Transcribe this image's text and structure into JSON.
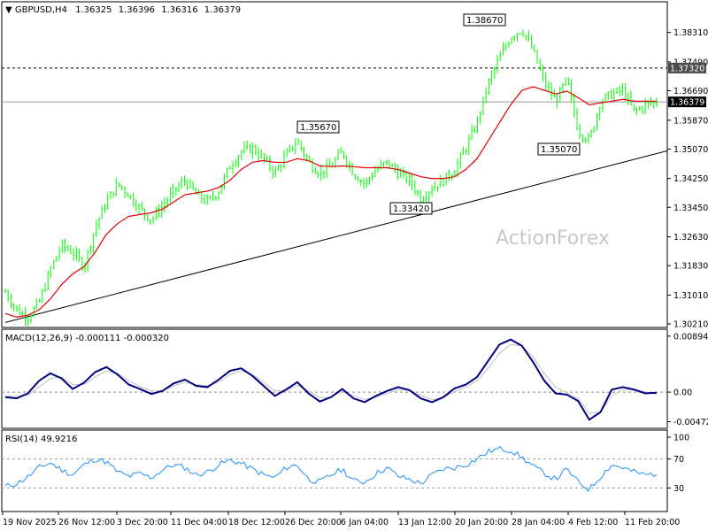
{
  "chart_data": [
    {
      "type": "candlestick",
      "title": "GBPUSD,H4",
      "ohlc": [
        "1.36325",
        "1.36396",
        "1.36316",
        "1.36379"
      ],
      "ylim": [
        1.3021,
        1.3867
      ],
      "yticks": [
        "1.38310",
        "1.37490",
        "1.36690",
        "1.35870",
        "1.35070",
        "1.34250",
        "1.33450",
        "1.32630",
        "1.31830",
        "1.31010",
        "1.30210"
      ],
      "xticks": [
        "19 Nov 2025",
        "26 Nov 12:00",
        "3 Dec 20:00",
        "11 Dec 04:00",
        "18 Dec 12:00",
        "26 Dec 20:00",
        "6 Jan 04:00",
        "13 Jan 12:00",
        "20 Jan 20:00",
        "28 Jan 04:00",
        "4 Feb 12:00",
        "11 Feb 20:00"
      ],
      "current_price": "1.36379",
      "resistance_level": "1.37320",
      "annotations": [
        {
          "text": "1.38670",
          "x": "27 Jan",
          "y": 1.3867
        },
        {
          "text": "1.35670",
          "x": "6 Jan",
          "y": 1.3567
        },
        {
          "text": "1.33420",
          "x": "16 Jan",
          "y": 1.3342
        },
        {
          "text": "1.35070",
          "x": "4 Feb",
          "y": 1.3507
        }
      ],
      "close_series": [
        1.311,
        1.306,
        1.304,
        1.308,
        1.317,
        1.324,
        1.322,
        1.318,
        1.329,
        1.336,
        1.341,
        1.338,
        1.334,
        1.331,
        1.335,
        1.339,
        1.342,
        1.338,
        1.336,
        1.339,
        1.346,
        1.35,
        1.351,
        1.348,
        1.344,
        1.349,
        1.353,
        1.347,
        1.344,
        1.346,
        1.35,
        1.344,
        1.341,
        1.345,
        1.347,
        1.344,
        1.342,
        1.337,
        1.34,
        1.342,
        1.345,
        1.351,
        1.358,
        1.369,
        1.376,
        1.382,
        1.384,
        1.378,
        1.369,
        1.364,
        1.37,
        1.356,
        1.353,
        1.364,
        1.366,
        1.367,
        1.361,
        1.363,
        1.3638
      ],
      "ma_series": [
        1.305,
        1.304,
        1.3045,
        1.306,
        1.309,
        1.313,
        1.316,
        1.318,
        1.322,
        1.327,
        1.33,
        1.332,
        1.3325,
        1.333,
        1.334,
        1.336,
        1.338,
        1.3385,
        1.339,
        1.34,
        1.342,
        1.345,
        1.347,
        1.3475,
        1.347,
        1.347,
        1.348,
        1.3475,
        1.346,
        1.3458,
        1.346,
        1.3458,
        1.3455,
        1.3455,
        1.3455,
        1.345,
        1.344,
        1.343,
        1.3425,
        1.3425,
        1.343,
        1.345,
        1.348,
        1.353,
        1.358,
        1.363,
        1.367,
        1.368,
        1.367,
        1.366,
        1.3668,
        1.365,
        1.363,
        1.3635,
        1.364,
        1.3645,
        1.364,
        1.364,
        1.364
      ],
      "trendline": [
        [
          0,
          1.3025
        ],
        [
          1,
          1.3507
        ]
      ]
    },
    {
      "type": "line",
      "title": "MACD(12,26,9) -0.000111 -0.000320",
      "yticks": [
        "0.008942",
        "0.00",
        "-0.004725"
      ],
      "ylim": [
        -0.0055,
        0.0092
      ],
      "macd": [
        -0.0008,
        -0.001,
        -0.0002,
        0.0018,
        0.003,
        0.0022,
        0.0005,
        0.0015,
        0.0032,
        0.004,
        0.0028,
        0.0012,
        0.0005,
        -0.0003,
        0.0002,
        0.0014,
        0.002,
        0.001,
        0.0008,
        0.002,
        0.0034,
        0.0038,
        0.0026,
        0.001,
        -0.0006,
        0.0004,
        0.0016,
        -0.0002,
        -0.0015,
        -0.0008,
        0.0005,
        -0.001,
        -0.0016,
        -0.0006,
        0.0002,
        0.0008,
        0.0003,
        -0.001,
        -0.0016,
        -0.0008,
        0.0006,
        0.0012,
        0.0024,
        0.005,
        0.0076,
        0.0084,
        0.0074,
        0.0048,
        0.0018,
        -0.0002,
        -0.0004,
        -0.0014,
        -0.0044,
        -0.0032,
        0.0004,
        0.0008,
        0.0004,
        -0.0002,
        -0.0001
      ],
      "signal": [
        -0.0006,
        -0.0007,
        -0.0005,
        0.0008,
        0.0022,
        0.0024,
        0.0012,
        0.0012,
        0.0024,
        0.0034,
        0.003,
        0.0018,
        0.0009,
        0.0002,
        0.0002,
        0.001,
        0.0016,
        0.0012,
        0.001,
        0.0016,
        0.0028,
        0.0034,
        0.0028,
        0.0016,
        0.0002,
        0.0003,
        0.0011,
        0.0002,
        -0.0009,
        -0.0008,
        0.0001,
        -0.0006,
        -0.0012,
        -0.0008,
        -0.0002,
        0.0004,
        0.0003,
        -0.0005,
        -0.0012,
        -0.0009,
        0.0001,
        0.0008,
        0.0018,
        0.0038,
        0.0062,
        0.0076,
        0.0074,
        0.0056,
        0.003,
        0.0008,
        -0.0001,
        -0.001,
        -0.0034,
        -0.0032,
        -0.0006,
        0.0004,
        0.0004,
        0.0,
        -0.0003
      ]
    },
    {
      "type": "line",
      "title": "RSI(14) 49.9216",
      "yticks": [
        "100",
        "70",
        "30",
        "0"
      ],
      "ylim": [
        0,
        100
      ],
      "levels": [
        70,
        30
      ],
      "rsi": [
        32,
        36,
        45,
        58,
        65,
        55,
        48,
        62,
        70,
        66,
        52,
        46,
        50,
        44,
        55,
        62,
        58,
        48,
        52,
        62,
        68,
        64,
        56,
        48,
        44,
        58,
        62,
        42,
        38,
        48,
        56,
        40,
        38,
        50,
        58,
        46,
        42,
        36,
        48,
        56,
        58,
        62,
        70,
        80,
        84,
        82,
        72,
        60,
        50,
        42,
        56,
        38,
        28,
        46,
        62,
        58,
        52,
        48,
        50
      ]
    }
  ],
  "watermark": "ActionForex",
  "colors": {
    "candle": "#00ff00",
    "ma": "#e00000",
    "macd": "#000080",
    "signal": "#c0c0c0",
    "rsi": "#1e90ff",
    "frame": "#000000"
  }
}
